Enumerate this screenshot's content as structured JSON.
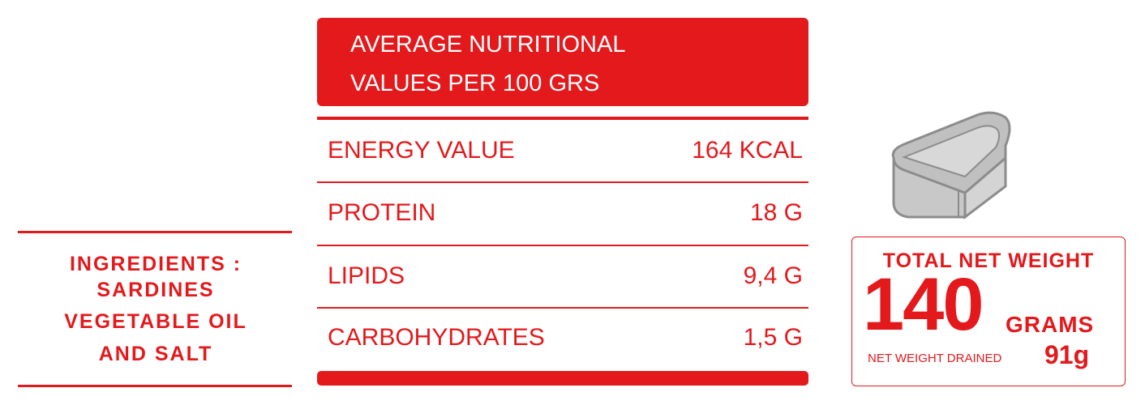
{
  "ingredients": {
    "lines": [
      "INGREDIENTS :",
      "SARDINES",
      "VEGETABLE OIL",
      "AND SALT"
    ]
  },
  "table": {
    "title_lines": [
      "AVERAGE NUTRITIONAL",
      "VALUES PER 100 GRS"
    ],
    "rows": [
      [
        "ENERGY VALUE",
        "164 KCAL"
      ],
      [
        "PROTEIN",
        "18 G"
      ],
      [
        "LIPIDS",
        "9,4 G"
      ],
      [
        "CARBOHYDRATES",
        "1,5 G"
      ]
    ]
  },
  "weight": {
    "label": "TOTAL NET WEIGHT",
    "amount": "140",
    "unit": "GRAMS",
    "drained_label": "NET WEIGHT DRAINED",
    "drained_value": "91g"
  }
}
